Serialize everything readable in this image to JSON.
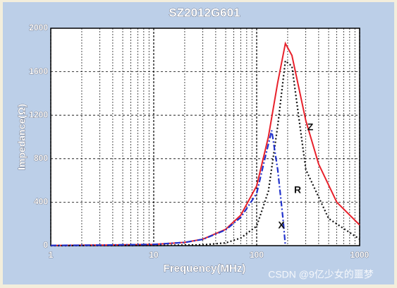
{
  "chart_data": {
    "type": "line",
    "title": "SZ2012G601",
    "xlabel": "Frequency(MHz)",
    "ylabel": "Impedance(Ω)",
    "xscale": "log",
    "xlim": [
      1,
      1000
    ],
    "ylim": [
      0,
      2000
    ],
    "xticks": [
      1,
      10,
      100,
      1000
    ],
    "x_minor_ticks": [
      2,
      3,
      4,
      5,
      6,
      7,
      8,
      9,
      20,
      30,
      40,
      50,
      60,
      70,
      80,
      90,
      200,
      300,
      400,
      500,
      600,
      700,
      800,
      900
    ],
    "yticks": [
      0,
      400,
      800,
      1200,
      1600,
      2000
    ],
    "grid": true,
    "series": [
      {
        "name": "Z",
        "color": "#e8212b",
        "dash": "solid",
        "x": [
          1,
          3,
          10,
          20,
          30,
          50,
          70,
          100,
          130,
          160,
          190,
          220,
          300,
          400,
          600,
          1000
        ],
        "values": [
          2,
          5,
          12,
          30,
          60,
          150,
          280,
          550,
          1000,
          1500,
          1860,
          1750,
          1150,
          750,
          400,
          190
        ]
      },
      {
        "name": "R",
        "color": "#111111",
        "dash": "dotted",
        "x": [
          1,
          10,
          30,
          50,
          70,
          100,
          130,
          160,
          190,
          220,
          300,
          500,
          1000
        ],
        "values": [
          0,
          1,
          8,
          25,
          70,
          180,
          500,
          1100,
          1700,
          1650,
          700,
          250,
          60
        ]
      },
      {
        "name": "X",
        "color": "#2233cc",
        "dash": "dashdot",
        "x": [
          1,
          3,
          10,
          20,
          30,
          50,
          70,
          100,
          120,
          140,
          160,
          180,
          190
        ],
        "values": [
          2,
          5,
          12,
          30,
          58,
          145,
          260,
          480,
          800,
          1060,
          700,
          250,
          0
        ]
      }
    ],
    "watermark": "CSDN @9亿少女的噩梦"
  }
}
